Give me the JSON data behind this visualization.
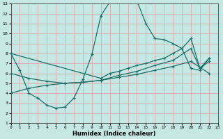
{
  "xlabel": "Humidex (Indice chaleur)",
  "bg_color": "#c5e8e5",
  "grid_color": "#dba8a8",
  "line_color": "#1a7068",
  "xlim": [
    0,
    23
  ],
  "ylim": [
    1,
    13
  ],
  "xticks": [
    0,
    1,
    2,
    3,
    4,
    5,
    6,
    7,
    8,
    9,
    10,
    11,
    12,
    13,
    14,
    15,
    16,
    17,
    18,
    19,
    20,
    21,
    22,
    23
  ],
  "yticks": [
    1,
    2,
    3,
    4,
    5,
    6,
    7,
    8,
    9,
    10,
    11,
    12,
    13
  ],
  "series1_x": [
    0,
    1,
    2,
    3,
    4,
    5,
    6,
    7,
    8,
    9,
    10,
    11,
    12,
    13,
    14,
    15,
    16,
    17,
    18,
    19,
    20,
    21,
    22
  ],
  "series1_y": [
    8.0,
    6.3,
    4.0,
    3.5,
    2.8,
    2.5,
    2.6,
    3.5,
    5.4,
    7.9,
    11.8,
    13.2,
    13.4,
    13.4,
    13.3,
    11.0,
    9.5,
    9.4,
    9.0,
    8.5,
    6.5,
    6.3,
    7.5
  ],
  "series2_x": [
    0,
    10,
    11,
    12,
    13,
    14,
    15,
    16,
    17,
    18,
    19,
    20,
    21,
    22
  ],
  "series2_y": [
    8.0,
    5.5,
    6.0,
    6.2,
    6.5,
    6.8,
    7.0,
    7.3,
    7.5,
    8.0,
    8.5,
    9.5,
    6.5,
    7.5
  ],
  "series3_x": [
    0,
    2,
    4,
    6,
    8,
    10,
    12,
    14,
    16,
    18,
    20,
    21,
    22
  ],
  "series3_y": [
    6.0,
    5.5,
    5.2,
    5.0,
    5.1,
    5.3,
    5.8,
    6.2,
    6.8,
    7.3,
    8.5,
    6.5,
    7.2
  ],
  "series4_x": [
    0,
    2,
    4,
    6,
    8,
    10,
    12,
    14,
    16,
    18,
    20,
    22
  ],
  "series4_y": [
    4.0,
    4.5,
    4.8,
    5.0,
    5.1,
    5.3,
    5.6,
    5.9,
    6.3,
    6.7,
    7.2,
    6.0
  ]
}
